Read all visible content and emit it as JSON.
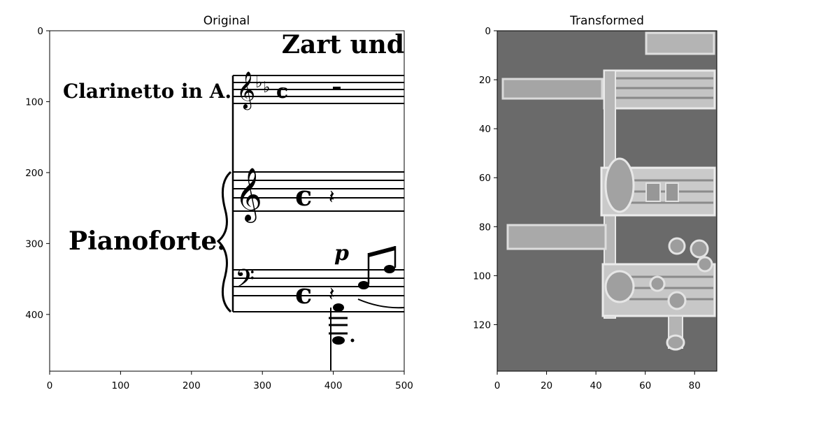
{
  "figure": {
    "panels": [
      {
        "title": "Original",
        "xticks": [
          "0",
          "100",
          "200",
          "300",
          "400",
          "500"
        ],
        "yticks": [
          "0",
          "100",
          "200",
          "300",
          "400"
        ],
        "xlim": [
          0,
          500
        ],
        "ylim": [
          480,
          0
        ],
        "score_text": {
          "tempo": "Zart und",
          "instrument1": "Clarinetto in A.",
          "instrument2": "Pianoforte.",
          "dynamic": "p"
        }
      },
      {
        "title": "Transformed",
        "xticks": [
          "0",
          "20",
          "40",
          "60",
          "80"
        ],
        "yticks": [
          "0",
          "20",
          "40",
          "60",
          "80",
          "100",
          "120"
        ],
        "xlim": [
          0,
          89
        ],
        "ylim": [
          139,
          0
        ]
      }
    ]
  },
  "chart_data": [
    {
      "type": "image",
      "title": "Original",
      "description_source": "grayscale scan of a music score",
      "xlim": [
        0,
        500
      ],
      "ylim": [
        480,
        0
      ],
      "xticks": [
        0,
        100,
        200,
        300,
        400,
        500
      ],
      "yticks": [
        0,
        100,
        200,
        300,
        400
      ],
      "grid": false
    },
    {
      "type": "image",
      "title": "Transformed",
      "xlim": [
        0,
        89
      ],
      "ylim": [
        139,
        0
      ],
      "xticks": [
        0,
        20,
        40,
        60,
        80
      ],
      "yticks": [
        0,
        20,
        40,
        60,
        80,
        100,
        120
      ],
      "grid": false
    }
  ]
}
